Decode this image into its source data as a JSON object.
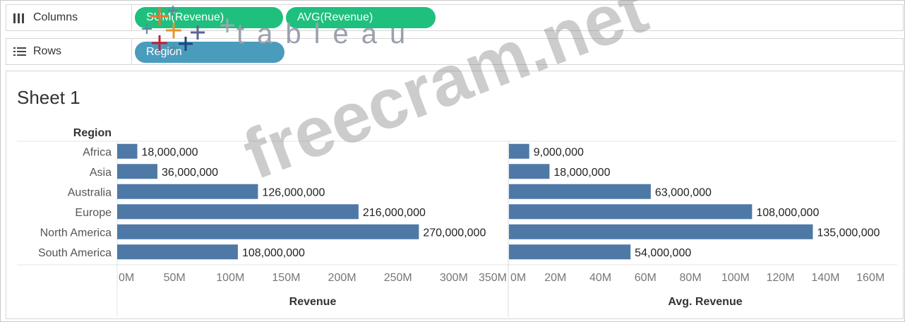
{
  "shelves": {
    "columns": {
      "label": "Columns",
      "icon": "columns-icon",
      "pills": [
        "SUM(Revenue)",
        "AVG(Revenue)"
      ]
    },
    "rows": {
      "label": "Rows",
      "icon": "rows-icon",
      "pills": [
        "Region"
      ]
    }
  },
  "sheet": {
    "title": "Sheet 1"
  },
  "logo": {
    "text": "tableau"
  },
  "watermark": {
    "text": "freecram.net"
  },
  "chart_data": [
    {
      "type": "bar",
      "orientation": "horizontal",
      "row_header": "Region",
      "categories": [
        "Africa",
        "Asia",
        "Australia",
        "Europe",
        "North America",
        "South America"
      ],
      "values": [
        18000000,
        36000000,
        126000000,
        216000000,
        270000000,
        108000000
      ],
      "data_labels": [
        "18,000,000",
        "36,000,000",
        "126,000,000",
        "216,000,000",
        "270,000,000",
        "108,000,000"
      ],
      "xlabel": "Revenue",
      "xlim": [
        0,
        350000000
      ],
      "xticks": [
        "0M",
        "50M",
        "100M",
        "150M",
        "200M",
        "250M",
        "300M",
        "350M"
      ],
      "color": "#4e79a7"
    },
    {
      "type": "bar",
      "orientation": "horizontal",
      "categories": [
        "Africa",
        "Asia",
        "Australia",
        "Europe",
        "North America",
        "South America"
      ],
      "values": [
        9000000,
        18000000,
        63000000,
        108000000,
        135000000,
        54000000
      ],
      "data_labels": [
        "9,000,000",
        "18,000,000",
        "63,000,000",
        "108,000,000",
        "135,000,000",
        "54,000,000"
      ],
      "xlabel": "Avg. Revenue",
      "xlim": [
        0,
        175000000
      ],
      "xticks": [
        "0M",
        "20M",
        "40M",
        "60M",
        "80M",
        "100M",
        "120M",
        "140M",
        "160M"
      ],
      "color": "#4e79a7"
    }
  ]
}
